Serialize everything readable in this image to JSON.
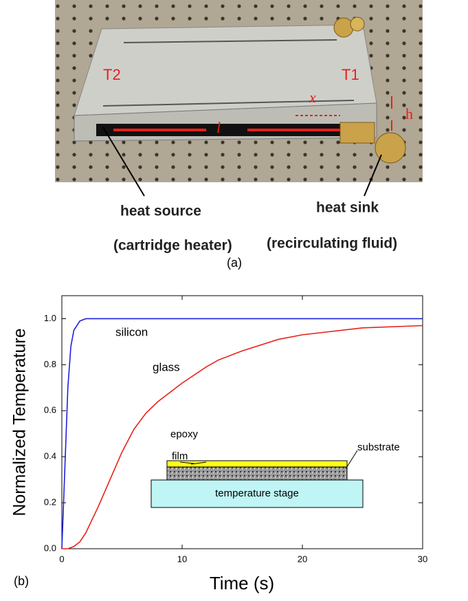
{
  "panel_a": {
    "t2": "T2",
    "t1": "T1",
    "x_label": "x",
    "l_label": "l",
    "h_label": "h",
    "heat_source": "heat source",
    "heat_source_note": "(cartridge heater)",
    "heat_sink": "heat sink",
    "heat_sink_note": "(recirculating fluid)",
    "caption": "(a)"
  },
  "chart_data": {
    "type": "line",
    "xlabel": "Time (s)",
    "ylabel": "Normalized Temperature",
    "x": [
      0,
      0.25,
      0.5,
      0.75,
      1,
      1.5,
      2,
      3,
      4,
      5,
      6,
      7,
      8,
      10,
      12,
      13,
      15,
      18,
      20,
      25,
      30
    ],
    "series": [
      {
        "name": "silicon",
        "color": "#1f1fe0",
        "values": [
          0,
          0.35,
          0.7,
          0.88,
          0.95,
          0.99,
          1.0,
          1.0,
          1.0,
          1.0,
          1.0,
          1.0,
          1.0,
          1.0,
          1.0,
          1.0,
          1.0,
          1.0,
          1.0,
          1.0,
          1.0
        ]
      },
      {
        "name": "glass",
        "color": "#e8201a",
        "values": [
          0,
          0,
          0,
          0.005,
          0.01,
          0.03,
          0.07,
          0.18,
          0.3,
          0.42,
          0.52,
          0.59,
          0.64,
          0.72,
          0.79,
          0.82,
          0.86,
          0.91,
          0.93,
          0.96,
          0.97
        ]
      }
    ],
    "xlim": [
      0,
      30
    ],
    "ylim": [
      0,
      1.1
    ],
    "xticks": [
      0,
      10,
      20,
      30
    ],
    "yticks": [
      {
        "value": 0,
        "label": "0.0"
      },
      0.2,
      0.4,
      0.6,
      0.8,
      {
        "value": 1,
        "label": "1.0"
      }
    ]
  },
  "inset": {
    "epoxy": "epoxy",
    "film": "film",
    "substrate": "substrate",
    "stage": "temperature stage"
  },
  "panel_b_caption": "(b)"
}
